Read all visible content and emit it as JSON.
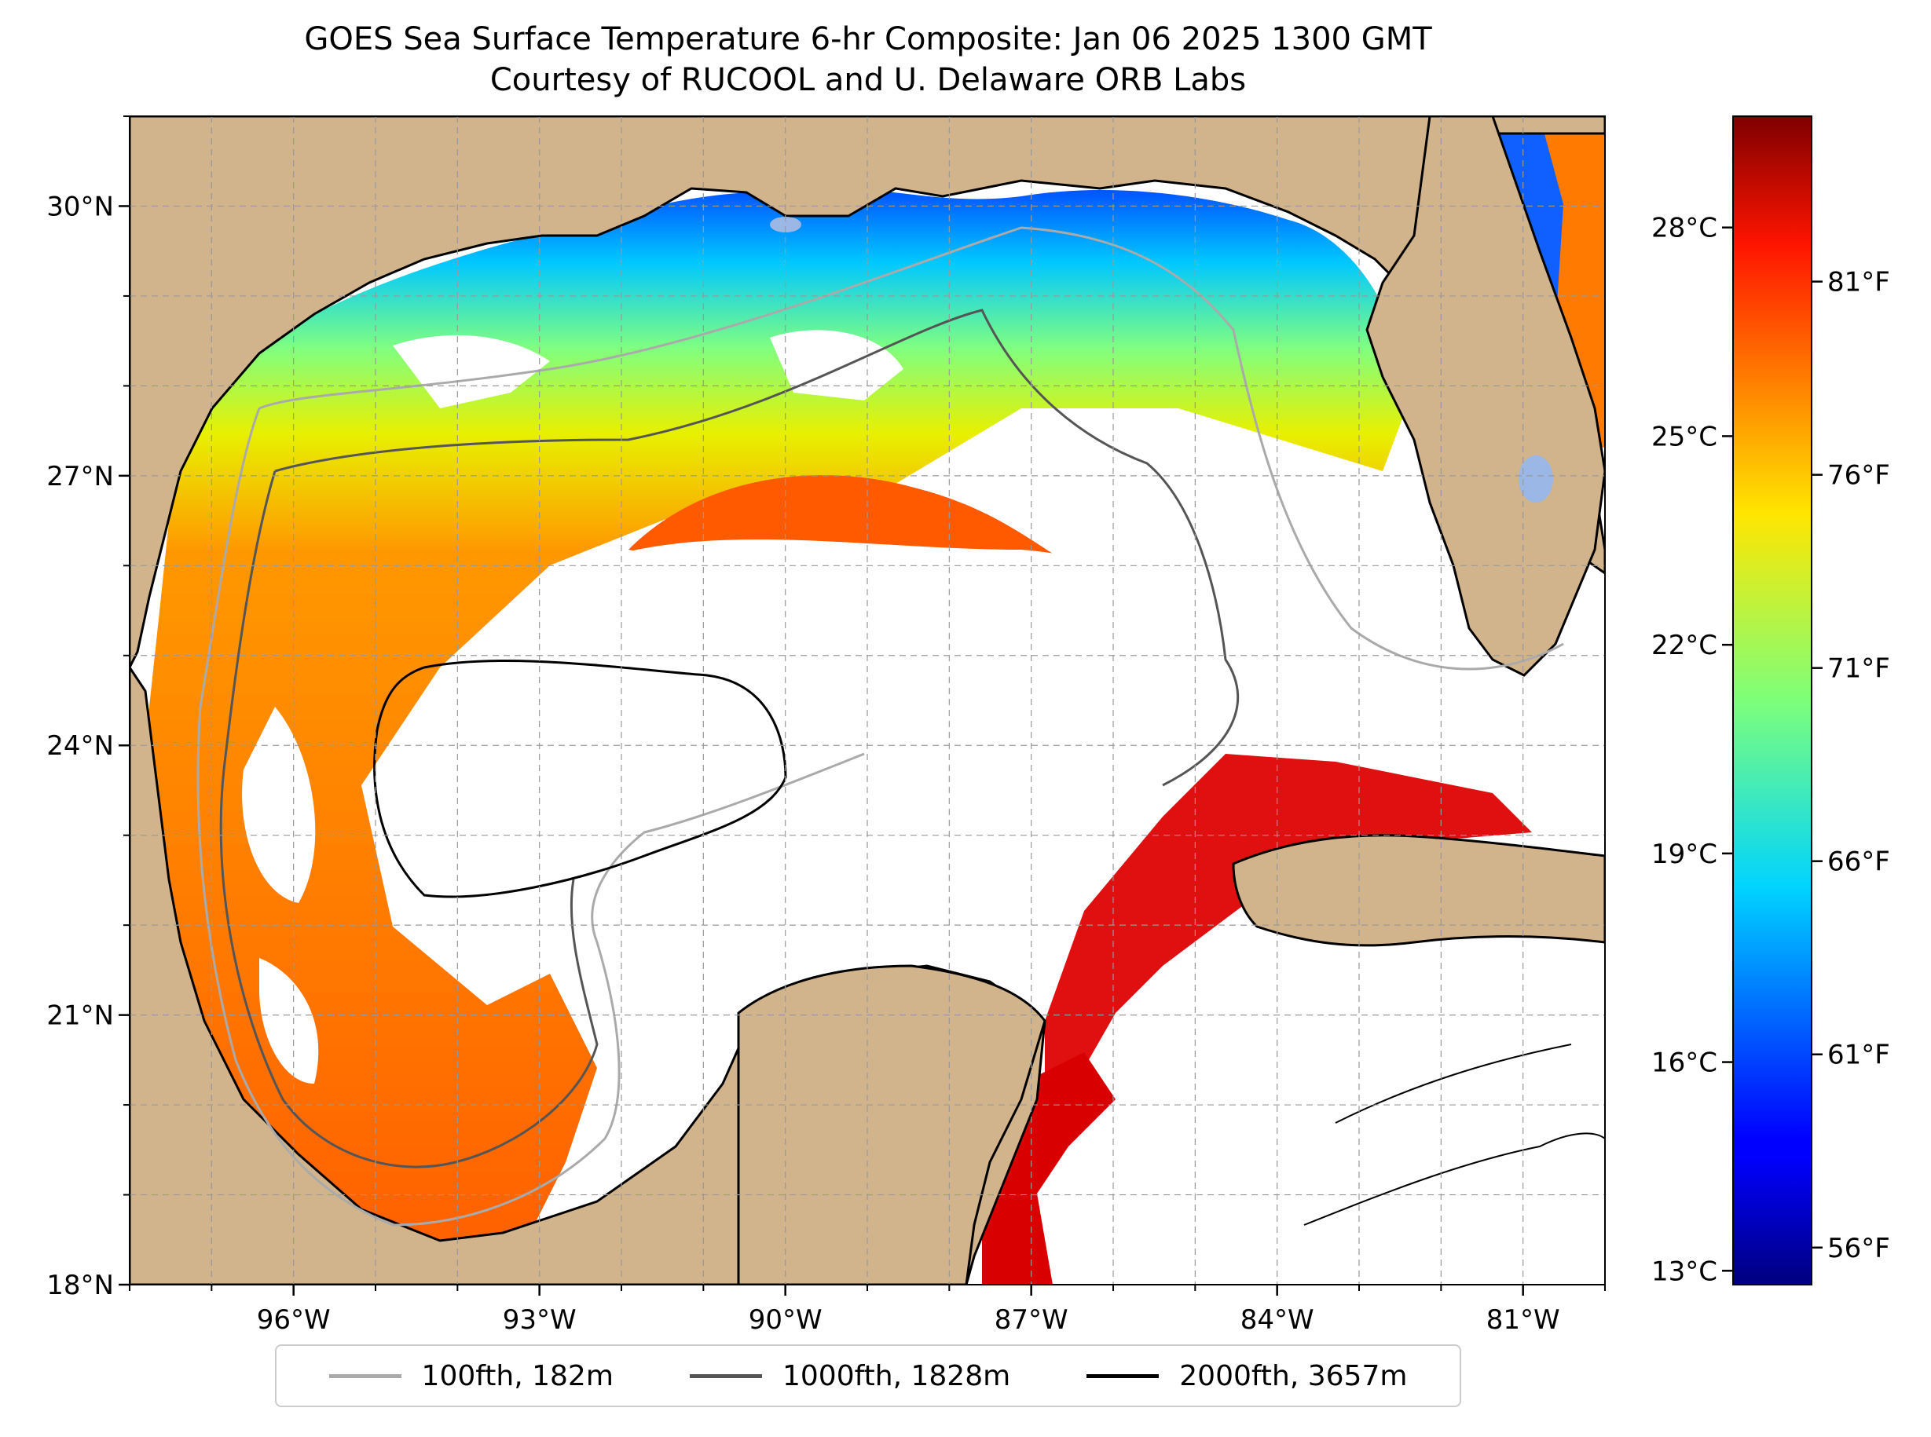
{
  "title": {
    "line1": "GOES Sea Surface Temperature 6-hr Composite: Jan 06 2025 1300 GMT",
    "line2": "Courtesy of RUCOOL and U. Delaware ORB Labs"
  },
  "map": {
    "extent": {
      "lon_min": -98.0,
      "lon_max": -80.0,
      "lat_min": 18.0,
      "lat_max": 31.0
    },
    "lat_ticks": [
      {
        "value": 18,
        "label": "18°N"
      },
      {
        "value": 21,
        "label": "21°N"
      },
      {
        "value": 24,
        "label": "24°N"
      },
      {
        "value": 27,
        "label": "27°N"
      },
      {
        "value": 30,
        "label": "30°N"
      }
    ],
    "lon_ticks": [
      {
        "value": -96,
        "label": "96°W"
      },
      {
        "value": -93,
        "label": "93°W"
      },
      {
        "value": -90,
        "label": "90°W"
      },
      {
        "value": -87,
        "label": "87°W"
      },
      {
        "value": -84,
        "label": "84°W"
      },
      {
        "value": -81,
        "label": "81°W"
      }
    ],
    "grid": true,
    "colors": {
      "land": "#d2b48c",
      "lakes": "#9ab7e6",
      "no_data": "#ffffff",
      "coastline": "#000000"
    }
  },
  "colorbar": {
    "colormap": "jet",
    "range_c": [
      12.8,
      29.6
    ],
    "celsius_ticks": [
      {
        "value": 13,
        "label": "13°C"
      },
      {
        "value": 16,
        "label": "16°C"
      },
      {
        "value": 19,
        "label": "19°C"
      },
      {
        "value": 22,
        "label": "22°C"
      },
      {
        "value": 25,
        "label": "25°C"
      },
      {
        "value": 28,
        "label": "28°C"
      }
    ],
    "fahrenheit_ticks": [
      {
        "value": 56,
        "label": "56°F"
      },
      {
        "value": 61,
        "label": "61°F"
      },
      {
        "value": 66,
        "label": "66°F"
      },
      {
        "value": 71,
        "label": "71°F"
      },
      {
        "value": 76,
        "label": "76°F"
      },
      {
        "value": 81,
        "label": "81°F"
      }
    ]
  },
  "legend": [
    {
      "label": "100fth, 182m",
      "color": "#aaaaaa"
    },
    {
      "label": "1000fth, 1828m",
      "color": "#555555"
    },
    {
      "label": "2000fth, 3657m",
      "color": "#000000"
    }
  ]
}
